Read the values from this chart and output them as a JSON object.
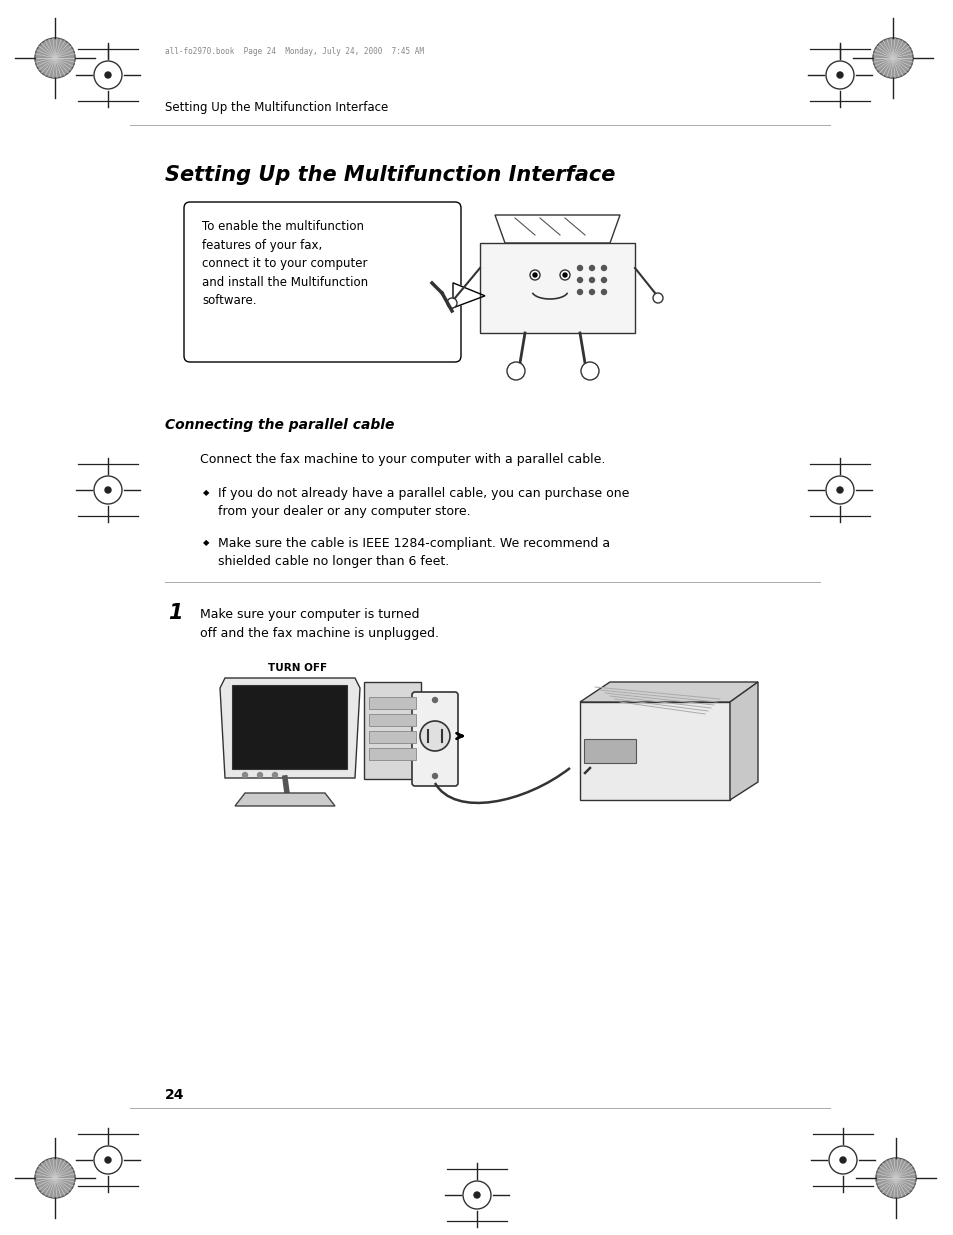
{
  "bg_color": "#ffffff",
  "page_width": 9.54,
  "page_height": 12.35,
  "top_header_text": "all-fo2970.book  Page 24  Monday, July 24, 2000  7:45 AM",
  "breadcrumb_text": "Setting Up the Multifunction Interface",
  "section_title": "Setting Up the Multifunction Interface",
  "callout_text": "To enable the multifunction\nfeatures of your fax,\nconnect it to your computer\nand install the Multifunction\nsoftware.",
  "subsection_title": "Connecting the parallel cable",
  "para1": "Connect the fax machine to your computer with a parallel cable.",
  "bullet1_line1": "If you do not already have a parallel cable, you can purchase one",
  "bullet1_line2": "from your dealer or any computer store.",
  "bullet2_line1": "Make sure the cable is IEEE 1284-compliant. We recommend a",
  "bullet2_line2": "shielded cable no longer than 6 feet.",
  "step1_num": "1",
  "step1_text": "Make sure your computer is turned\noff and the fax machine is unplugged.",
  "turn_off_label": "TURN OFF",
  "page_number": "24",
  "font_color": "#000000"
}
